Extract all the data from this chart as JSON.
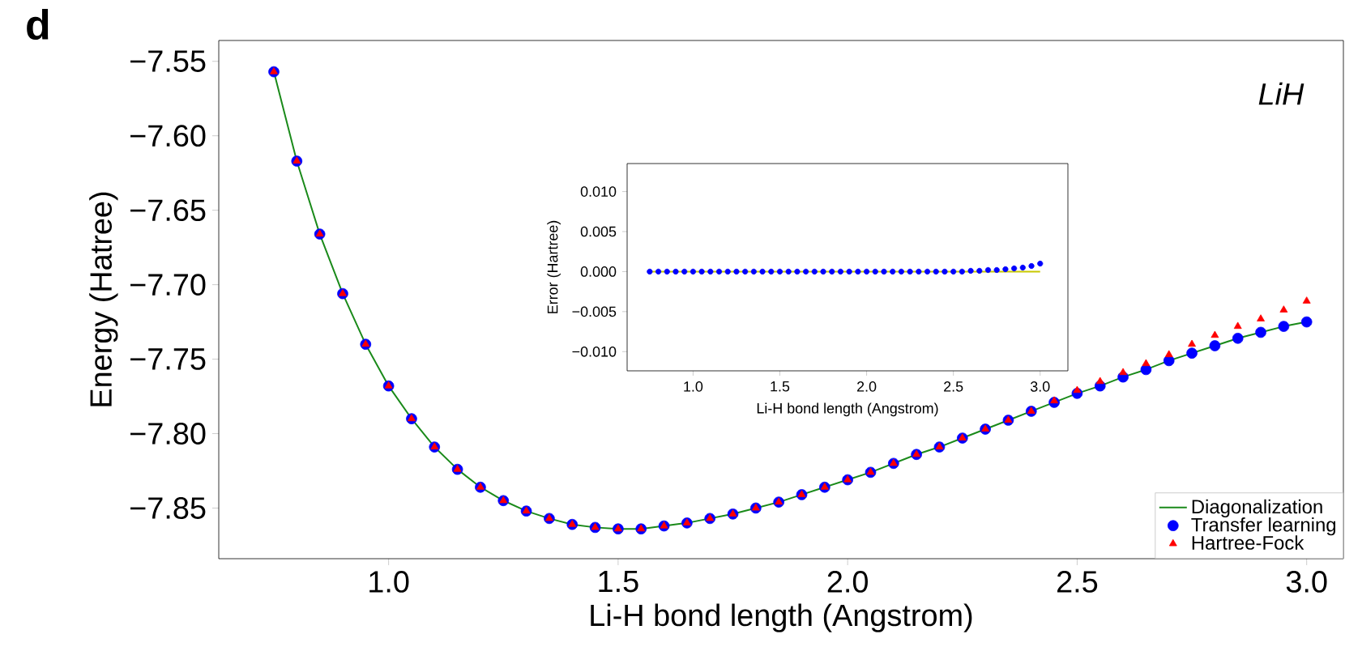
{
  "chart_data": [
    {
      "type": "line",
      "xlabel": "Li-H bond length (Angstrom)",
      "ylabel": "Energy (Hatree)",
      "annotations": [
        "d",
        "LiH"
      ],
      "x": [
        0.75,
        0.8,
        0.85,
        0.9,
        0.95,
        1.0,
        1.05,
        1.1,
        1.15,
        1.2,
        1.25,
        1.3,
        1.35,
        1.4,
        1.45,
        1.5,
        1.55,
        1.6,
        1.65,
        1.7,
        1.75,
        1.8,
        1.85,
        1.9,
        1.95,
        2.0,
        2.05,
        2.1,
        2.15,
        2.2,
        2.25,
        2.3,
        2.35,
        2.4,
        2.45,
        2.5,
        2.55,
        2.6,
        2.65,
        2.7,
        2.75,
        2.8,
        2.85,
        2.9,
        2.95,
        3.0
      ],
      "series": [
        {
          "name": "Diagonalization",
          "marker": "none",
          "color": "#1a8a1a",
          "values": [
            -7.557,
            -7.617,
            -7.666,
            -7.706,
            -7.74,
            -7.768,
            -7.79,
            -7.809,
            -7.824,
            -7.836,
            -7.845,
            -7.852,
            -7.857,
            -7.861,
            -7.863,
            -7.864,
            -7.864,
            -7.862,
            -7.86,
            -7.857,
            -7.854,
            -7.85,
            -7.846,
            -7.841,
            -7.836,
            -7.831,
            -7.826,
            -7.82,
            -7.814,
            -7.809,
            -7.803,
            -7.797,
            -7.791,
            -7.785,
            -7.779,
            -7.773,
            -7.768,
            -7.762,
            -7.757,
            -7.751,
            -7.746,
            -7.741,
            -7.736,
            -7.732,
            -7.728,
            -7.725
          ]
        },
        {
          "name": "Transfer learning",
          "type": "scatter",
          "marker": "circle",
          "color": "#0000ff",
          "values": [
            -7.557,
            -7.617,
            -7.666,
            -7.706,
            -7.74,
            -7.768,
            -7.79,
            -7.809,
            -7.824,
            -7.836,
            -7.845,
            -7.852,
            -7.857,
            -7.861,
            -7.863,
            -7.864,
            -7.864,
            -7.862,
            -7.86,
            -7.857,
            -7.854,
            -7.85,
            -7.846,
            -7.841,
            -7.836,
            -7.831,
            -7.826,
            -7.82,
            -7.814,
            -7.809,
            -7.803,
            -7.797,
            -7.791,
            -7.785,
            -7.779,
            -7.773,
            -7.768,
            -7.762,
            -7.757,
            -7.751,
            -7.746,
            -7.741,
            -7.736,
            -7.732,
            -7.728,
            -7.725
          ]
        },
        {
          "name": "Hartree-Fock",
          "type": "scatter",
          "marker": "triangle",
          "color": "#ff0000",
          "values": [
            -7.557,
            -7.617,
            -7.666,
            -7.706,
            -7.74,
            -7.768,
            -7.79,
            -7.809,
            -7.824,
            -7.836,
            -7.845,
            -7.852,
            -7.857,
            -7.861,
            -7.863,
            -7.864,
            -7.864,
            -7.862,
            -7.86,
            -7.857,
            -7.854,
            -7.85,
            -7.846,
            -7.841,
            -7.836,
            -7.831,
            -7.826,
            -7.82,
            -7.814,
            -7.809,
            -7.803,
            -7.797,
            -7.791,
            -7.785,
            -7.778,
            -7.771,
            -7.765,
            -7.759,
            -7.753,
            -7.747,
            -7.74,
            -7.734,
            -7.728,
            -7.723,
            -7.717,
            -7.711
          ]
        }
      ],
      "xlim": [
        0.63,
        3.08
      ],
      "ylim": [
        -7.884,
        -7.536
      ],
      "xticks": [
        {
          "value": 1.0,
          "label": "1.0"
        },
        {
          "value": 1.5,
          "label": "1.5"
        },
        {
          "value": 2.0,
          "label": "2.0"
        },
        {
          "value": 2.5,
          "label": "2.5"
        },
        {
          "value": 3.0,
          "label": "3.0"
        }
      ],
      "yticks": [
        {
          "value": -7.55,
          "label": "−7.55"
        },
        {
          "value": -7.6,
          "label": "−7.60"
        },
        {
          "value": -7.65,
          "label": "−7.65"
        },
        {
          "value": -7.7,
          "label": "−7.70"
        },
        {
          "value": -7.75,
          "label": "−7.75"
        },
        {
          "value": -7.8,
          "label": "−7.80"
        },
        {
          "value": -7.85,
          "label": "−7.85"
        }
      ],
      "legend": "bottom right"
    },
    {
      "type": "scatter",
      "xlabel": "Li-H bond length (Angstrom)",
      "ylabel": "Error (Hartree)",
      "x": [
        0.75,
        0.8,
        0.85,
        0.9,
        0.95,
        1.0,
        1.05,
        1.1,
        1.15,
        1.2,
        1.25,
        1.3,
        1.35,
        1.4,
        1.45,
        1.5,
        1.55,
        1.6,
        1.65,
        1.7,
        1.75,
        1.8,
        1.85,
        1.9,
        1.95,
        2.0,
        2.05,
        2.1,
        2.15,
        2.2,
        2.25,
        2.3,
        2.35,
        2.4,
        2.45,
        2.5,
        2.55,
        2.6,
        2.65,
        2.7,
        2.75,
        2.8,
        2.85,
        2.9,
        2.95,
        3.0
      ],
      "series": [
        {
          "type": "line",
          "marker": "none",
          "color": "#c8c800",
          "x": [
            0.75,
            3.0
          ],
          "values": [
            0,
            0
          ]
        },
        {
          "marker": "circle",
          "color": "#0000ff",
          "values": [
            0,
            0,
            0,
            0,
            0,
            0,
            0,
            0,
            0,
            0,
            0,
            0,
            0,
            0,
            0,
            0,
            0,
            0,
            0,
            0,
            0,
            0,
            0,
            0,
            0,
            0,
            0,
            0,
            0,
            0,
            0,
            0,
            0,
            0,
            0,
            0,
            0,
            0.0001,
            0.0001,
            0.0002,
            0.0002,
            0.0003,
            0.0004,
            0.0005,
            0.0007,
            0.001
          ]
        }
      ],
      "xlim": [
        0.62,
        3.16
      ],
      "ylim": [
        -0.0124,
        0.0135
      ],
      "xticks": [
        {
          "value": 1.0,
          "label": "1.0"
        },
        {
          "value": 1.5,
          "label": "1.5"
        },
        {
          "value": 2.0,
          "label": "2.0"
        },
        {
          "value": 2.5,
          "label": "2.5"
        },
        {
          "value": 3.0,
          "label": "3.0"
        }
      ],
      "yticks": [
        {
          "value": 0.01,
          "label": "0.010"
        },
        {
          "value": 0.005,
          "label": "0.005"
        },
        {
          "value": 0,
          "label": "0.000"
        },
        {
          "value": -0.005,
          "label": "−0.005"
        },
        {
          "value": -0.01,
          "label": "−0.010"
        }
      ],
      "legend": false
    }
  ]
}
